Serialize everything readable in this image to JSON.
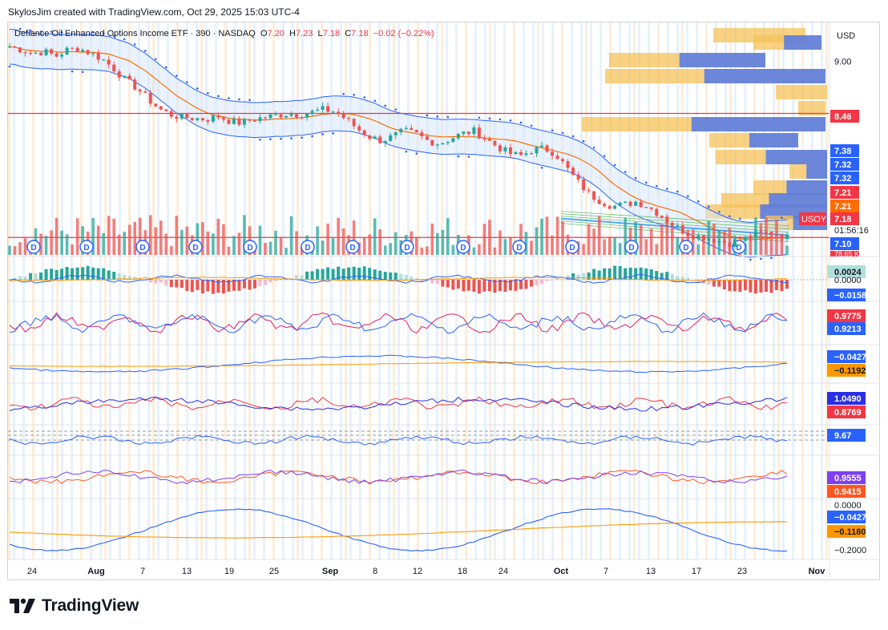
{
  "header": {
    "caption": "SkylosJim created with TradingView.com, Oct 29, 2025 15:03 UTC-4"
  },
  "legend": {
    "symbol_name": "Defiance Oil Enhanced Options Income ETF · 390 · NASDAQ",
    "open_label": "O",
    "open": "7.20",
    "high_label": "H",
    "high": "7.23",
    "low_label": "L",
    "low": "7.18",
    "close_label": "C",
    "close": "7.18",
    "change": "−0.02 (−0.22%)"
  },
  "currency": "USD",
  "ticker_badge": "USOY",
  "countdown": "01:56:16",
  "volume_badge": "78.65 K",
  "dividend_marker": "D",
  "price_axis_labels": [
    "9.00"
  ],
  "price_badges": [
    {
      "text": "8.46",
      "color": "#f23645",
      "price": 8.46
    },
    {
      "text": "7.38",
      "color": "#2962ff",
      "price": 7.38
    },
    {
      "text": "7.32",
      "color": "#2962ff",
      "price": 7.32
    },
    {
      "text": "7.32",
      "color": "#2962ff",
      "price": 7.32
    },
    {
      "text": "7.21",
      "color": "#f23645",
      "price": 7.21
    },
    {
      "text": "7.21",
      "color": "#ff6d00",
      "price": 7.21
    },
    {
      "text": "7.18",
      "color": "#f23645",
      "price": 7.18
    },
    {
      "text": "7.10",
      "color": "#2962ff",
      "price": 7.1
    }
  ],
  "panes": [
    {
      "name": "macd-pane",
      "labels": [
        {
          "text": "0.0024",
          "bg": "#b2dfdb",
          "fg": "#131722"
        },
        {
          "text": "0.0000",
          "bg": "none",
          "fg": "#131722"
        },
        {
          "text": "−0.0158",
          "bg": "#2962ff",
          "fg": "#ffffff"
        }
      ]
    },
    {
      "name": "correlation-pane",
      "labels": [
        {
          "text": "0.9775",
          "bg": "#f23645",
          "fg": "#ffffff"
        },
        {
          "text": "0.9213",
          "bg": "#2962ff",
          "fg": "#ffffff"
        }
      ]
    },
    {
      "name": "oscillator-pane",
      "labels": [
        {
          "text": "−0.0427",
          "bg": "#2962ff",
          "fg": "#ffffff"
        },
        {
          "text": "−0.1192",
          "bg": "#ff9800",
          "fg": "#131722"
        }
      ]
    },
    {
      "name": "ratio-pane",
      "labels": [
        {
          "text": "1.0490",
          "bg": "#2a2ee6",
          "fg": "#ffffff"
        },
        {
          "text": "0.8769",
          "bg": "#f23645",
          "fg": "#ffffff"
        }
      ]
    },
    {
      "name": "rsi-pane",
      "labels": [
        {
          "text": "9.67",
          "bg": "#2962ff",
          "fg": "#ffffff"
        }
      ]
    },
    {
      "name": "strength-pane",
      "labels": [
        {
          "text": "0.9555",
          "bg": "#7e3ff2",
          "fg": "#ffffff"
        },
        {
          "text": "0.9415",
          "bg": "#ff5722",
          "fg": "#ffffff"
        }
      ]
    },
    {
      "name": "trend-pane",
      "labels": [
        {
          "text": "0.0000",
          "bg": "none",
          "fg": "#131722"
        },
        {
          "text": "−0.0427",
          "bg": "#2962ff",
          "fg": "#ffffff"
        },
        {
          "text": "−0.1180",
          "bg": "#ff9800",
          "fg": "#131722"
        },
        {
          "text": "−0.2000",
          "bg": "none",
          "fg": "#131722"
        }
      ]
    }
  ],
  "brand": "TradingView",
  "chart_data": {
    "type": "candlestick",
    "title": "Defiance Oil Enhanced Options Income ETF · 390 · NASDAQ",
    "x_tick_labels": [
      "24",
      "Aug",
      "7",
      "13",
      "19",
      "25",
      "Sep",
      "8",
      "12",
      "18",
      "24",
      "Oct",
      "7",
      "13",
      "17",
      "23",
      "Nov"
    ],
    "y_range": [
      7.0,
      9.3
    ],
    "horizontal_lines": [
      8.46,
      7.18
    ],
    "close_series": [
      9.15,
      9.12,
      9.08,
      9.1,
      9.05,
      9.12,
      9.13,
      9.08,
      9.02,
      8.92,
      8.8,
      8.72,
      8.6,
      8.5,
      8.44,
      8.42,
      8.41,
      8.4,
      8.43,
      8.38,
      8.36,
      8.4,
      8.42,
      8.44,
      8.46,
      8.45,
      8.47,
      8.5,
      8.48,
      8.4,
      8.3,
      8.22,
      8.18,
      8.22,
      8.28,
      8.25,
      8.18,
      8.15,
      8.2,
      8.25,
      8.28,
      8.2,
      8.12,
      8.05,
      8.02,
      8.08,
      8.1,
      8.05,
      7.9,
      7.75,
      7.62,
      7.55,
      7.5,
      7.52,
      7.55,
      7.5,
      7.42,
      7.32,
      7.25,
      7.2,
      7.18,
      7.15,
      7.12,
      7.15,
      7.2,
      7.23,
      7.22,
      7.18
    ],
    "last": {
      "open": 7.2,
      "high": 7.23,
      "low": 7.18,
      "close": 7.18,
      "change": -0.02,
      "change_pct": -0.22
    }
  }
}
